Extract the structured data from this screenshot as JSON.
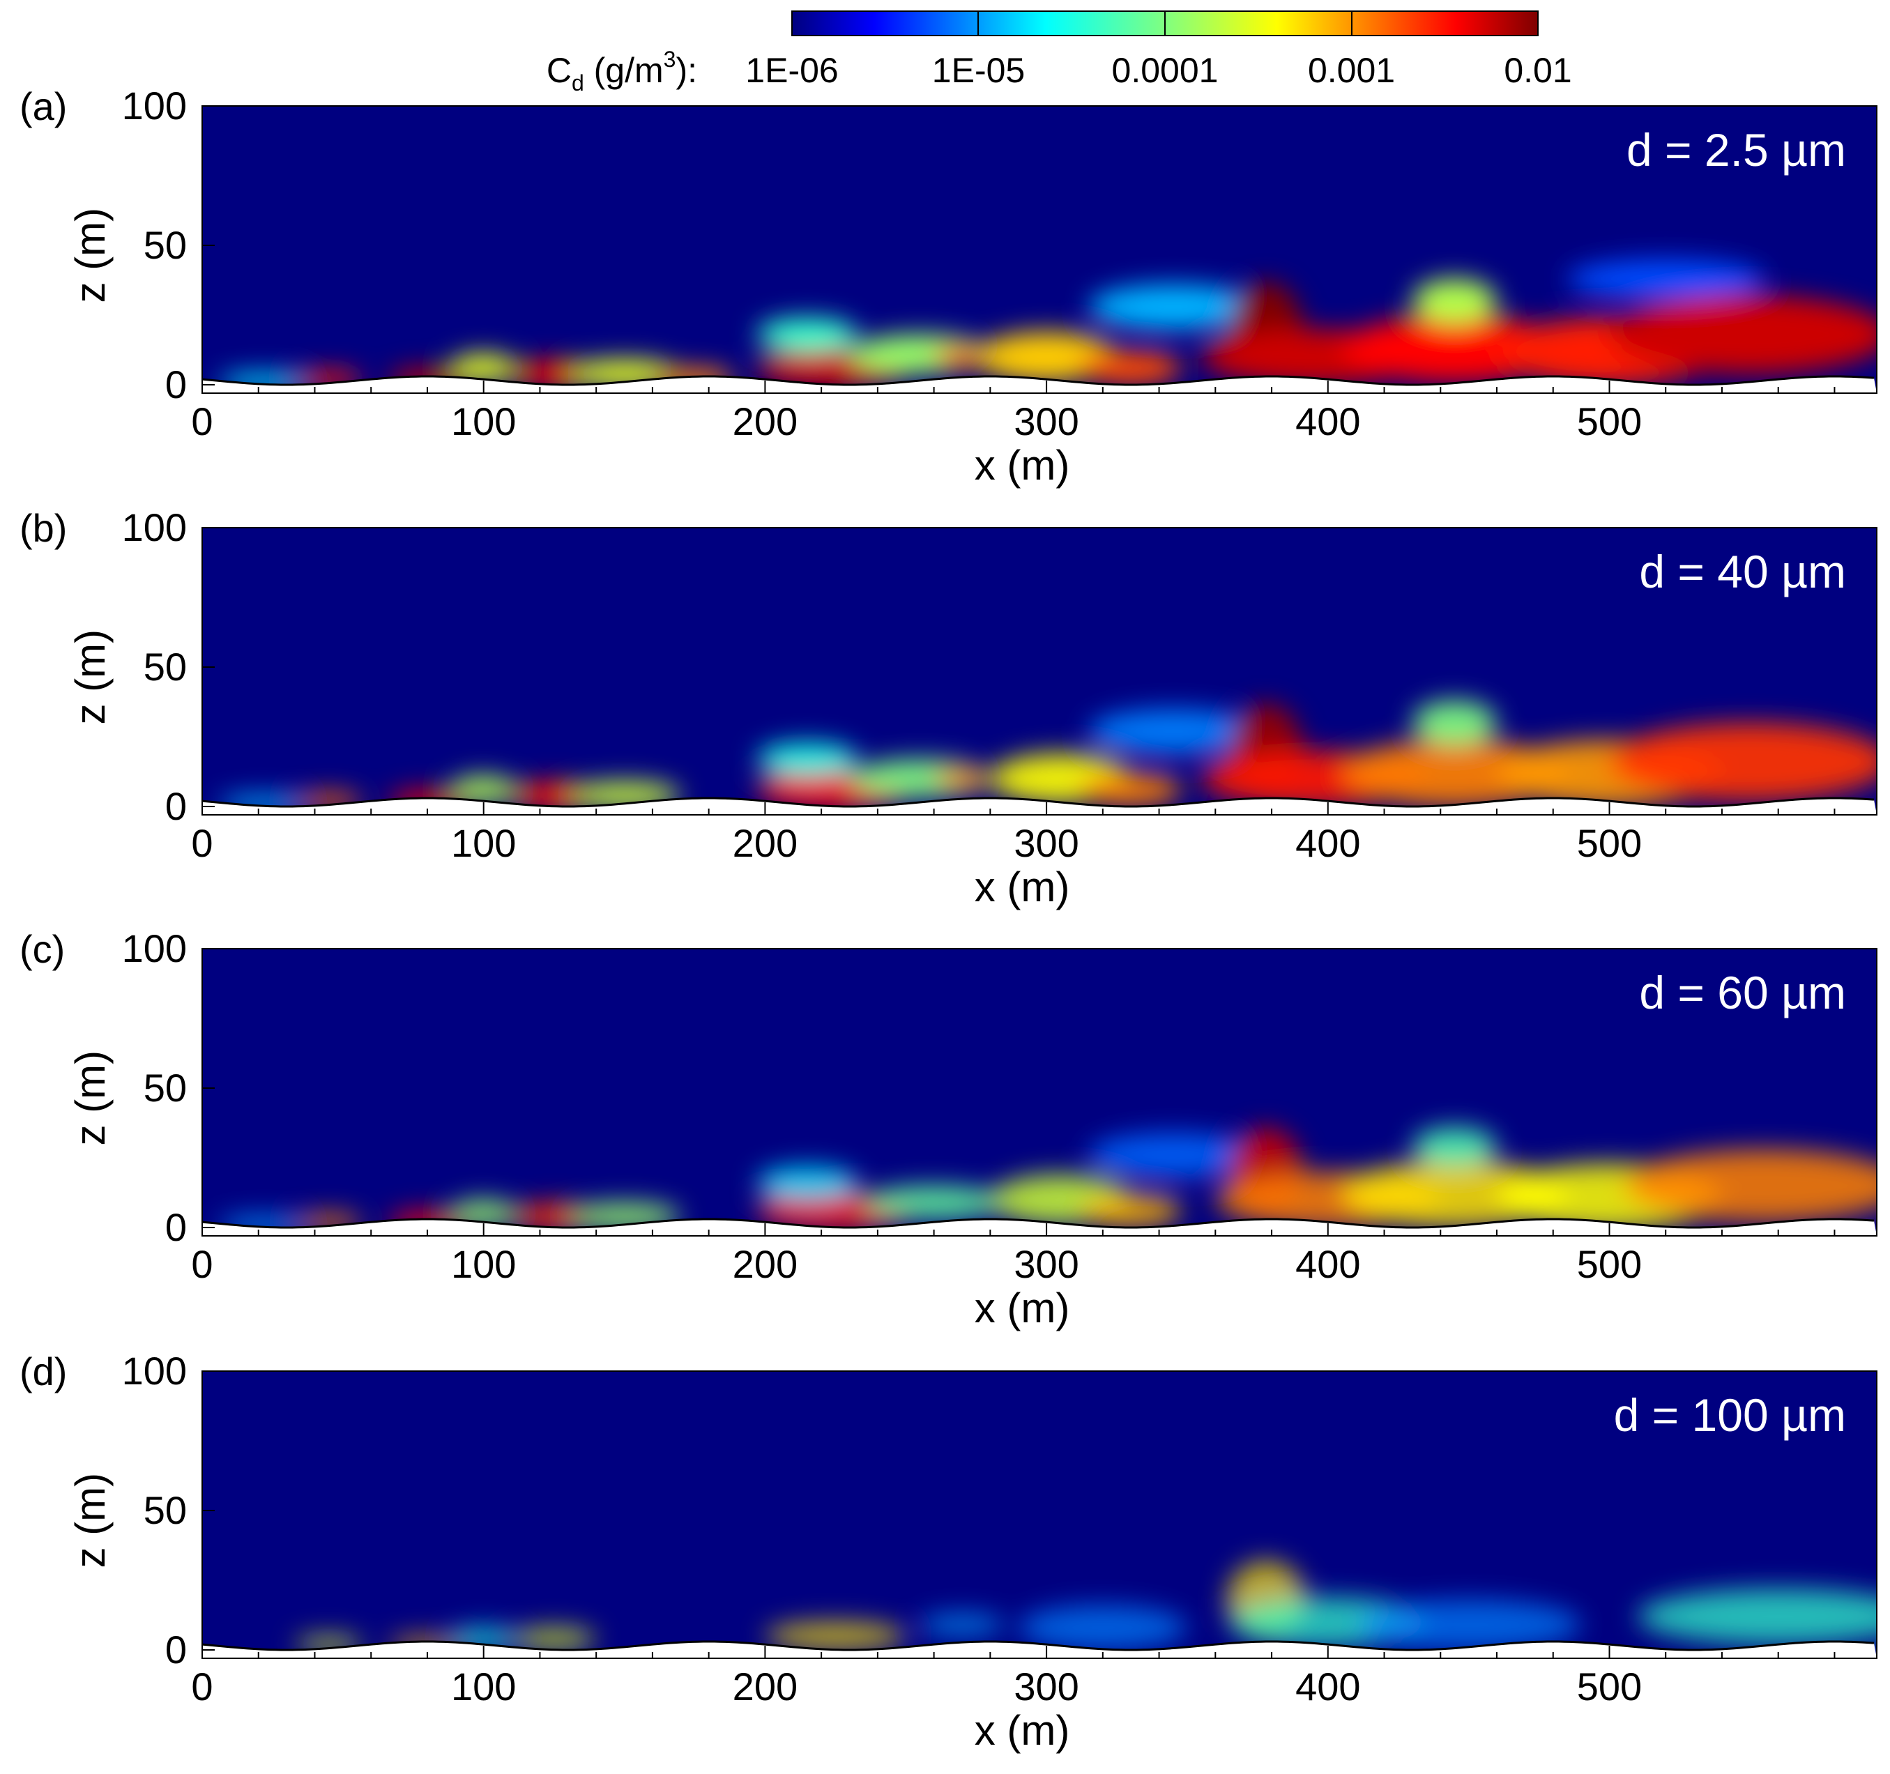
{
  "chart_data": {
    "type": "heatmap",
    "colorbar": {
      "label_main": "C",
      "label_sub": "d",
      "label_rest": " (g/m",
      "label_sup": "3",
      "label_end": "):",
      "tick_labels": [
        "1E-06",
        "1E-05",
        "0.0001",
        "0.001",
        "0.01"
      ],
      "tick_values": [
        1e-06,
        1e-05,
        0.0001,
        0.001,
        0.01
      ],
      "scale": "log",
      "colormap": "jet"
    },
    "shared_axes": {
      "xlabel": "x (m)",
      "ylabel": "z (m)",
      "xlim": [
        0,
        595
      ],
      "ylim": [
        -3,
        100
      ],
      "x_ticks": [
        0,
        100,
        200,
        300,
        400,
        500
      ],
      "x_tick_labels": [
        "0",
        "100",
        "200",
        "300",
        "400",
        "500"
      ],
      "y_ticks": [
        0,
        50,
        100
      ],
      "y_tick_labels": [
        "0",
        "50",
        "100"
      ],
      "terrain_description": "sinusoidal hills, height about 3 m, wavelength about 100 m"
    },
    "panels": [
      {
        "label": "(a)",
        "annotation": "d = 2.5 µm",
        "intensity": 1.0,
        "plumes": [
          {
            "x": 22,
            "z": 1,
            "sx": 16,
            "sz": 3,
            "v": -4.6
          },
          {
            "x": 45,
            "z": 2,
            "sx": 12,
            "sz": 3,
            "v": -2.6
          },
          {
            "x": 80,
            "z": 2,
            "sx": 14,
            "sz": 4,
            "v": -2.2
          },
          {
            "x": 100,
            "z": 6,
            "sx": 12,
            "sz": 5,
            "v": -3.6
          },
          {
            "x": 125,
            "z": 4,
            "sx": 15,
            "sz": 5,
            "v": -2.4
          },
          {
            "x": 150,
            "z": 4,
            "sx": 20,
            "sz": 5,
            "v": -3.6
          },
          {
            "x": 175,
            "z": 2,
            "sx": 14,
            "sz": 4,
            "v": -3.0
          },
          {
            "x": 225,
            "z": 6,
            "sx": 28,
            "sz": 7,
            "v": -2.3
          },
          {
            "x": 215,
            "z": 18,
            "sx": 18,
            "sz": 6,
            "v": -4.3
          },
          {
            "x": 255,
            "z": 11,
            "sx": 25,
            "sz": 7,
            "v": -3.9
          },
          {
            "x": 270,
            "z": 10,
            "sx": 10,
            "sz": 4,
            "v": -2.9
          },
          {
            "x": 300,
            "z": 10,
            "sx": 25,
            "sz": 9,
            "v": -3.3
          },
          {
            "x": 330,
            "z": 6,
            "sx": 18,
            "sz": 6,
            "v": -2.8
          },
          {
            "x": 345,
            "z": 28,
            "sx": 30,
            "sz": 8,
            "v": -4.8
          },
          {
            "x": 378,
            "z": 20,
            "sx": 13,
            "sz": 17,
            "v": -2.0
          },
          {
            "x": 395,
            "z": 10,
            "sx": 40,
            "sz": 10,
            "v": -2.3
          },
          {
            "x": 445,
            "z": 13,
            "sx": 40,
            "sz": 12,
            "v": -2.5
          },
          {
            "x": 445,
            "z": 30,
            "sx": 15,
            "sz": 8,
            "v": -3.8
          },
          {
            "x": 500,
            "z": 12,
            "sx": 40,
            "sz": 12,
            "v": -2.6
          },
          {
            "x": 550,
            "z": 18,
            "sx": 50,
            "sz": 14,
            "v": -2.3
          },
          {
            "x": 520,
            "z": 38,
            "sx": 35,
            "sz": 7,
            "v": -5.2
          }
        ]
      },
      {
        "label": "(b)",
        "annotation": "d = 40 µm",
        "intensity": 0.92,
        "plumes": [
          {
            "x": 22,
            "z": 1,
            "sx": 16,
            "sz": 3,
            "v": -4.8
          },
          {
            "x": 45,
            "z": 2,
            "sx": 12,
            "sz": 3,
            "v": -2.9
          },
          {
            "x": 80,
            "z": 2,
            "sx": 14,
            "sz": 4,
            "v": -2.4
          },
          {
            "x": 100,
            "z": 6,
            "sx": 12,
            "sz": 5,
            "v": -3.8
          },
          {
            "x": 125,
            "z": 4,
            "sx": 15,
            "sz": 5,
            "v": -2.6
          },
          {
            "x": 150,
            "z": 4,
            "sx": 20,
            "sz": 5,
            "v": -3.7
          },
          {
            "x": 225,
            "z": 6,
            "sx": 28,
            "sz": 7,
            "v": -2.5
          },
          {
            "x": 215,
            "z": 17,
            "sx": 18,
            "sz": 6,
            "v": -4.4
          },
          {
            "x": 255,
            "z": 10,
            "sx": 25,
            "sz": 7,
            "v": -4.0
          },
          {
            "x": 270,
            "z": 10,
            "sx": 10,
            "sz": 4,
            "v": -3.0
          },
          {
            "x": 305,
            "z": 10,
            "sx": 25,
            "sz": 9,
            "v": -3.5
          },
          {
            "x": 330,
            "z": 6,
            "sx": 18,
            "sz": 6,
            "v": -3.0
          },
          {
            "x": 345,
            "z": 27,
            "sx": 30,
            "sz": 8,
            "v": -5.0
          },
          {
            "x": 378,
            "z": 20,
            "sx": 13,
            "sz": 17,
            "v": -2.1
          },
          {
            "x": 395,
            "z": 10,
            "sx": 40,
            "sz": 10,
            "v": -2.6
          },
          {
            "x": 445,
            "z": 12,
            "sx": 40,
            "sz": 12,
            "v": -3.0
          },
          {
            "x": 445,
            "z": 30,
            "sx": 15,
            "sz": 8,
            "v": -4.0
          },
          {
            "x": 500,
            "z": 12,
            "sx": 40,
            "sz": 12,
            "v": -3.1
          },
          {
            "x": 550,
            "z": 16,
            "sx": 50,
            "sz": 14,
            "v": -2.7
          }
        ]
      },
      {
        "label": "(c)",
        "annotation": "d = 60 µm",
        "intensity": 0.85,
        "plumes": [
          {
            "x": 22,
            "z": 1,
            "sx": 16,
            "sz": 3,
            "v": -4.9
          },
          {
            "x": 45,
            "z": 2,
            "sx": 12,
            "sz": 3,
            "v": -3.0
          },
          {
            "x": 80,
            "z": 2,
            "sx": 14,
            "sz": 4,
            "v": -2.5
          },
          {
            "x": 100,
            "z": 5,
            "sx": 12,
            "sz": 5,
            "v": -3.9
          },
          {
            "x": 125,
            "z": 4,
            "sx": 15,
            "sz": 5,
            "v": -2.7
          },
          {
            "x": 150,
            "z": 4,
            "sx": 20,
            "sz": 5,
            "v": -3.9
          },
          {
            "x": 225,
            "z": 6,
            "sx": 28,
            "sz": 7,
            "v": -2.6
          },
          {
            "x": 215,
            "z": 16,
            "sx": 18,
            "sz": 6,
            "v": -4.6
          },
          {
            "x": 260,
            "z": 9,
            "sx": 25,
            "sz": 6,
            "v": -4.1
          },
          {
            "x": 305,
            "z": 10,
            "sx": 25,
            "sz": 9,
            "v": -3.7
          },
          {
            "x": 330,
            "z": 6,
            "sx": 18,
            "sz": 6,
            "v": -3.2
          },
          {
            "x": 345,
            "z": 26,
            "sx": 30,
            "sz": 8,
            "v": -5.1
          },
          {
            "x": 378,
            "z": 20,
            "sx": 13,
            "sz": 16,
            "v": -2.3
          },
          {
            "x": 400,
            "z": 10,
            "sx": 40,
            "sz": 10,
            "v": -3.0
          },
          {
            "x": 445,
            "z": 12,
            "sx": 40,
            "sz": 12,
            "v": -3.4
          },
          {
            "x": 445,
            "z": 29,
            "sx": 15,
            "sz": 7,
            "v": -4.2
          },
          {
            "x": 500,
            "z": 11,
            "sx": 40,
            "sz": 12,
            "v": -3.5
          },
          {
            "x": 555,
            "z": 15,
            "sx": 50,
            "sz": 13,
            "v": -3.0
          }
        ]
      },
      {
        "label": "(d)",
        "annotation": "d = 100 µm",
        "intensity": 0.7,
        "plumes": [
          {
            "x": 45,
            "z": 2,
            "sx": 12,
            "sz": 3,
            "v": -3.6
          },
          {
            "x": 80,
            "z": 2,
            "sx": 14,
            "sz": 3,
            "v": -3.2
          },
          {
            "x": 100,
            "z": 4,
            "sx": 12,
            "sz": 4,
            "v": -4.4
          },
          {
            "x": 125,
            "z": 4,
            "sx": 15,
            "sz": 4,
            "v": -3.6
          },
          {
            "x": 225,
            "z": 5,
            "sx": 25,
            "sz": 5,
            "v": -3.4
          },
          {
            "x": 270,
            "z": 9,
            "sx": 15,
            "sz": 4,
            "v": -4.9
          },
          {
            "x": 320,
            "z": 8,
            "sx": 30,
            "sz": 8,
            "v": -5.0
          },
          {
            "x": 378,
            "z": 18,
            "sx": 14,
            "sz": 14,
            "v": -3.4
          },
          {
            "x": 400,
            "z": 10,
            "sx": 35,
            "sz": 9,
            "v": -4.3
          },
          {
            "x": 450,
            "z": 9,
            "sx": 40,
            "sz": 9,
            "v": -5.0
          },
          {
            "x": 560,
            "z": 12,
            "sx": 50,
            "sz": 10,
            "v": -4.3
          }
        ]
      }
    ]
  }
}
